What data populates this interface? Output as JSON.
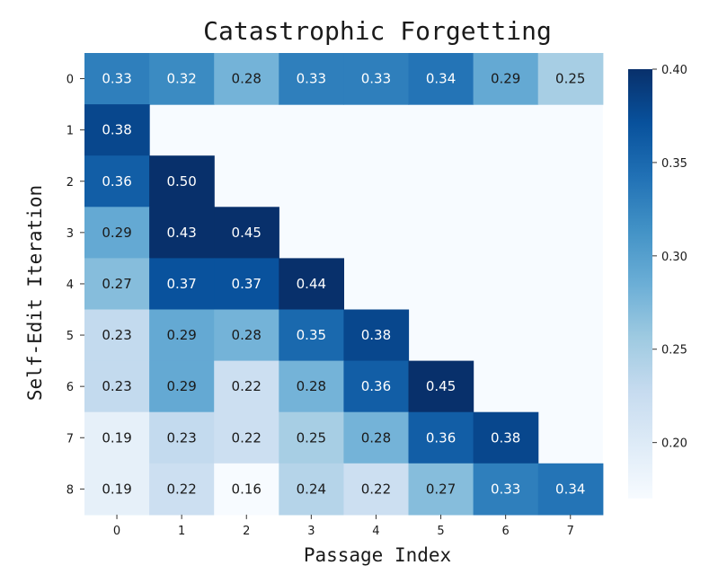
{
  "chart_data": {
    "type": "heatmap",
    "title": "Catastrophic Forgetting",
    "xlabel": "Passage Index",
    "ylabel": "Self-Edit Iteration",
    "x_categories": [
      "0",
      "1",
      "2",
      "3",
      "4",
      "5",
      "6",
      "7"
    ],
    "y_categories": [
      "0",
      "1",
      "2",
      "3",
      "4",
      "5",
      "6",
      "7",
      "8"
    ],
    "values": [
      [
        0.33,
        0.32,
        0.28,
        0.33,
        0.33,
        0.34,
        0.29,
        0.25
      ],
      [
        0.38,
        null,
        null,
        null,
        null,
        null,
        null,
        null
      ],
      [
        0.36,
        0.5,
        null,
        null,
        null,
        null,
        null,
        null
      ],
      [
        0.29,
        0.43,
        0.45,
        null,
        null,
        null,
        null,
        null
      ],
      [
        0.27,
        0.37,
        0.37,
        0.44,
        null,
        null,
        null,
        null
      ],
      [
        0.23,
        0.29,
        0.28,
        0.35,
        0.38,
        null,
        null,
        null
      ],
      [
        0.23,
        0.29,
        0.22,
        0.28,
        0.36,
        0.45,
        null,
        null
      ],
      [
        0.19,
        0.23,
        0.22,
        0.25,
        0.28,
        0.36,
        0.38,
        null
      ],
      [
        0.19,
        0.22,
        0.16,
        0.24,
        0.22,
        0.27,
        0.33,
        0.34
      ]
    ],
    "value_labels": [
      [
        "0.33",
        "0.32",
        "0.28",
        "0.33",
        "0.33",
        "0.34",
        "0.29",
        "0.25"
      ],
      [
        "0.38",
        "",
        "",
        "",
        "",
        "",
        "",
        ""
      ],
      [
        "0.36",
        "0.50",
        "",
        "",
        "",
        "",
        "",
        ""
      ],
      [
        "0.29",
        "0.43",
        "0.45",
        "",
        "",
        "",
        "",
        ""
      ],
      [
        "0.27",
        "0.37",
        "0.37",
        "0.44",
        "",
        "",
        "",
        ""
      ],
      [
        "0.23",
        "0.29",
        "0.28",
        "0.35",
        "0.38",
        "",
        "",
        ""
      ],
      [
        "0.23",
        "0.29",
        "0.22",
        "0.28",
        "0.36",
        "0.45",
        "",
        ""
      ],
      [
        "0.19",
        "0.23",
        "0.22",
        "0.25",
        "0.28",
        "0.36",
        "0.38",
        ""
      ],
      [
        "0.19",
        "0.22",
        "0.16",
        "0.24",
        "0.22",
        "0.27",
        "0.33",
        "0.34"
      ]
    ],
    "colorbar": {
      "vmin": 0.17,
      "vmax": 0.4,
      "ticks": [
        0.2,
        0.25,
        0.3,
        0.35,
        0.4
      ],
      "tick_labels": [
        "0.20",
        "0.25",
        "0.30",
        "0.35",
        "0.40"
      ]
    },
    "colormap": "Blues",
    "colorscale": [
      "#f7fbff",
      "#deebf7",
      "#c6dbef",
      "#9ecae1",
      "#6baed6",
      "#4292c6",
      "#2171b5",
      "#08519c",
      "#08306b"
    ],
    "empty_cell_color": "#f7fbff",
    "grid": false,
    "legend": "colorbar-right"
  }
}
